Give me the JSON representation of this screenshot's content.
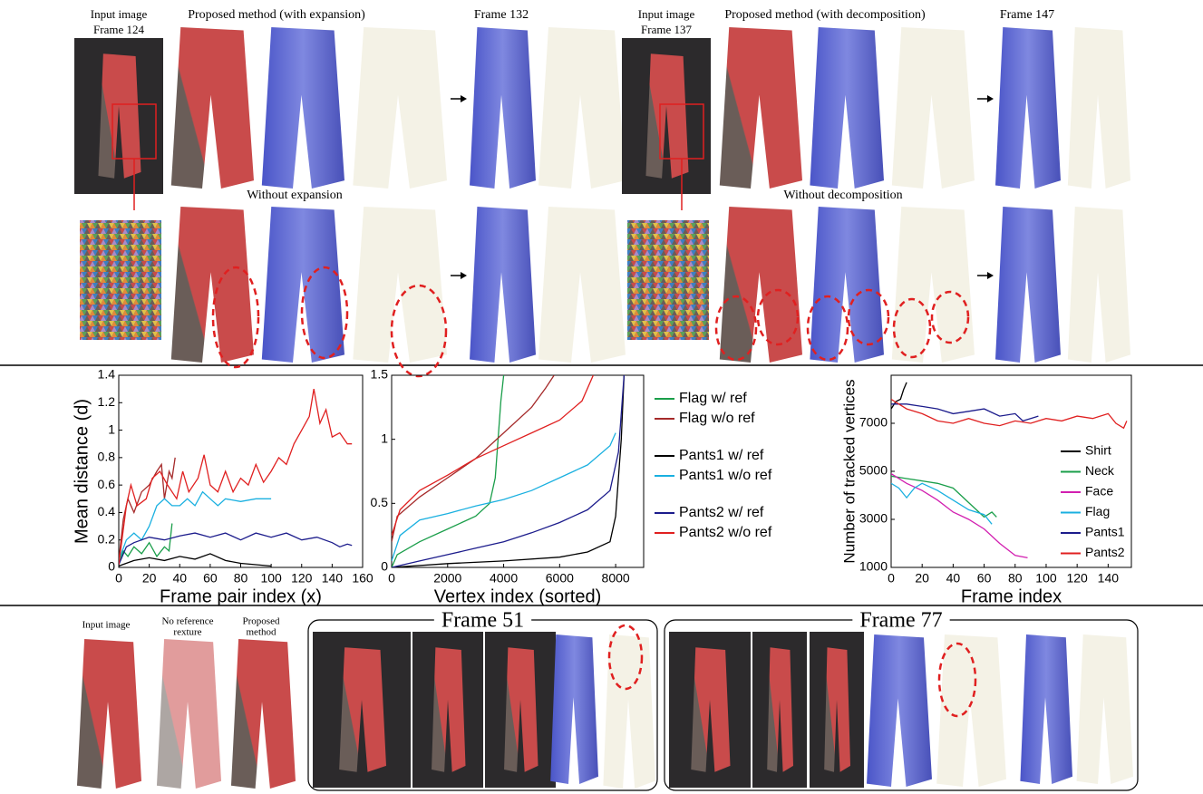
{
  "top_panel": {
    "left": {
      "input_label": [
        "Input image",
        "Frame 124"
      ],
      "method_label": "Proposed method (with expansion)",
      "frame_label": "Frame 132",
      "ablation_label": "Without expansion"
    },
    "right": {
      "input_label": [
        "Input image",
        "Frame 137"
      ],
      "method_label": "Proposed method (with decomposition)",
      "frame_label": "Frame 147",
      "ablation_label": "Without decomposition"
    }
  },
  "chart_data": [
    {
      "type": "line",
      "xlabel": "Frame pair index (x)",
      "ylabel": "Mean distance (d)",
      "xlim": [
        0,
        160
      ],
      "ylim": [
        0,
        1.4
      ],
      "xticks": [
        0,
        20,
        40,
        60,
        80,
        100,
        120,
        140,
        160
      ],
      "yticks": [
        0,
        0.2,
        0.4,
        0.6,
        0.8,
        1,
        1.2,
        1.4
      ],
      "series": [
        {
          "color": "#1a9e4a",
          "x": [
            0,
            3,
            6,
            10,
            15,
            20,
            25,
            30,
            33,
            35
          ],
          "values": [
            0.02,
            0.12,
            0.08,
            0.15,
            0.1,
            0.18,
            0.08,
            0.15,
            0.12,
            0.32
          ]
        },
        {
          "color": "#a52a2a",
          "x": [
            0,
            3,
            6,
            10,
            15,
            20,
            25,
            28,
            30,
            33,
            35,
            37
          ],
          "values": [
            0.05,
            0.35,
            0.5,
            0.4,
            0.55,
            0.6,
            0.7,
            0.75,
            0.5,
            0.7,
            0.65,
            0.8
          ]
        },
        {
          "color": "#000000",
          "x": [
            0,
            10,
            20,
            30,
            40,
            50,
            60,
            70,
            80,
            90,
            100
          ],
          "values": [
            0.01,
            0.05,
            0.07,
            0.05,
            0.08,
            0.06,
            0.1,
            0.05,
            0.03,
            0.02,
            0.01
          ]
        },
        {
          "color": "#1ab0e0",
          "x": [
            0,
            5,
            10,
            15,
            20,
            25,
            30,
            35,
            40,
            45,
            50,
            55,
            60,
            65,
            70,
            80,
            90,
            100
          ],
          "values": [
            0.05,
            0.2,
            0.25,
            0.2,
            0.3,
            0.45,
            0.5,
            0.45,
            0.45,
            0.5,
            0.45,
            0.55,
            0.5,
            0.45,
            0.5,
            0.48,
            0.5,
            0.5
          ]
        },
        {
          "color": "#1c1c8c",
          "x": [
            0,
            5,
            10,
            20,
            30,
            40,
            50,
            60,
            70,
            80,
            90,
            100,
            110,
            120,
            130,
            140,
            145,
            150,
            153
          ],
          "values": [
            0.02,
            0.15,
            0.18,
            0.22,
            0.2,
            0.23,
            0.25,
            0.22,
            0.25,
            0.2,
            0.25,
            0.22,
            0.25,
            0.2,
            0.22,
            0.18,
            0.15,
            0.17,
            0.16
          ]
        },
        {
          "color": "#e02020",
          "x": [
            0,
            5,
            8,
            12,
            18,
            22,
            27,
            32,
            38,
            42,
            46,
            52,
            56,
            60,
            65,
            70,
            75,
            80,
            85,
            90,
            95,
            100,
            105,
            110,
            115,
            120,
            125,
            128,
            132,
            136,
            140,
            145,
            150,
            153
          ],
          "values": [
            0.02,
            0.45,
            0.6,
            0.45,
            0.5,
            0.65,
            0.7,
            0.6,
            0.5,
            0.7,
            0.55,
            0.65,
            0.82,
            0.6,
            0.55,
            0.7,
            0.55,
            0.65,
            0.6,
            0.75,
            0.62,
            0.7,
            0.8,
            0.75,
            0.9,
            1.0,
            1.1,
            1.3,
            1.05,
            1.15,
            0.95,
            0.98,
            0.9,
            0.9
          ]
        }
      ]
    },
    {
      "type": "line",
      "xlabel": "Vertex index (sorted)",
      "xlim": [
        0,
        9000
      ],
      "ylim": [
        0,
        1.5
      ],
      "xticks": [
        0,
        2000,
        4000,
        6000,
        8000
      ],
      "yticks": [
        0,
        0.5,
        1,
        1.5
      ],
      "legend": "outside right",
      "series": [
        {
          "name": "Flag w/ ref",
          "color": "#1a9e4a",
          "x": [
            0,
            200,
            1000,
            2000,
            3000,
            3500,
            3700,
            3800,
            3900,
            4000
          ],
          "values": [
            0,
            0.1,
            0.2,
            0.3,
            0.4,
            0.5,
            0.7,
            1.0,
            1.3,
            1.5
          ]
        },
        {
          "name": "Flag w/o ref",
          "color": "#a52a2a",
          "x": [
            0,
            200,
            1000,
            2000,
            3000,
            4000,
            5000,
            5500,
            5800
          ],
          "values": [
            0.2,
            0.4,
            0.55,
            0.7,
            0.85,
            1.05,
            1.25,
            1.4,
            1.5
          ]
        },
        {
          "name": "Pants1 w/ ref",
          "color": "#000000",
          "x": [
            0,
            2000,
            4000,
            6000,
            7000,
            7800,
            8000,
            8200,
            8300
          ],
          "values": [
            0,
            0.03,
            0.05,
            0.08,
            0.12,
            0.2,
            0.4,
            1.0,
            1.5
          ]
        },
        {
          "name": "Pants1 w/o ref",
          "color": "#1ab0e0",
          "x": [
            0,
            300,
            1000,
            2000,
            3000,
            4000,
            5000,
            6000,
            7000,
            7800,
            8000
          ],
          "values": [
            0.05,
            0.25,
            0.37,
            0.42,
            0.48,
            0.53,
            0.6,
            0.7,
            0.8,
            0.95,
            1.05
          ]
        },
        {
          "name": "Pants2 w/ ref",
          "color": "#1c1c8c",
          "x": [
            0,
            1000,
            2000,
            3000,
            4000,
            5000,
            6000,
            7000,
            7800,
            8100,
            8300
          ],
          "values": [
            0,
            0.05,
            0.1,
            0.15,
            0.2,
            0.27,
            0.35,
            0.45,
            0.6,
            0.9,
            1.5
          ]
        },
        {
          "name": "Pants2 w/o ref",
          "color": "#e02020",
          "x": [
            0,
            300,
            1000,
            2000,
            3000,
            4000,
            5000,
            6000,
            6800,
            7200
          ],
          "values": [
            0.25,
            0.45,
            0.6,
            0.72,
            0.85,
            0.95,
            1.05,
            1.15,
            1.3,
            1.5
          ]
        }
      ]
    },
    {
      "type": "line",
      "xlabel": "Frame index",
      "ylabel": "Number of tracked vertices",
      "xlim": [
        0,
        155
      ],
      "ylim": [
        1000,
        9000
      ],
      "xticks": [
        0,
        20,
        40,
        60,
        80,
        100,
        120,
        140
      ],
      "yticks": [
        1000,
        3000,
        5000,
        7000
      ],
      "legend": "lower right",
      "series": [
        {
          "name": "Shirt",
          "color": "#000000",
          "x": [
            0,
            3,
            6,
            8,
            10
          ],
          "values": [
            7600,
            7900,
            8000,
            8400,
            8700
          ]
        },
        {
          "name": "Neck",
          "color": "#1a9e4a",
          "x": [
            0,
            10,
            20,
            30,
            40,
            50,
            60,
            65,
            68
          ],
          "values": [
            4800,
            4700,
            4600,
            4500,
            4300,
            3700,
            3100,
            3300,
            3100
          ]
        },
        {
          "name": "Face",
          "color": "#d21fb0",
          "x": [
            0,
            10,
            20,
            30,
            40,
            50,
            60,
            70,
            80,
            88
          ],
          "values": [
            4900,
            4500,
            4200,
            3800,
            3300,
            3000,
            2600,
            2000,
            1500,
            1400
          ]
        },
        {
          "name": "Flag",
          "color": "#1ab0e0",
          "x": [
            0,
            5,
            10,
            15,
            20,
            30,
            40,
            50,
            60,
            65
          ],
          "values": [
            4500,
            4300,
            3900,
            4300,
            4500,
            4200,
            3800,
            3400,
            3200,
            2800
          ]
        },
        {
          "name": "Pants1",
          "color": "#1c1c8c",
          "x": [
            0,
            10,
            20,
            30,
            40,
            50,
            60,
            70,
            80,
            85,
            90,
            95
          ],
          "values": [
            7800,
            7800,
            7700,
            7600,
            7400,
            7500,
            7600,
            7300,
            7400,
            7100,
            7200,
            7300
          ]
        },
        {
          "name": "Pants2",
          "color": "#e02020",
          "x": [
            0,
            10,
            20,
            30,
            40,
            50,
            60,
            70,
            80,
            90,
            100,
            110,
            120,
            130,
            140,
            145,
            150,
            152
          ],
          "values": [
            8000,
            7600,
            7400,
            7100,
            7000,
            7200,
            7000,
            6900,
            7100,
            7000,
            7200,
            7100,
            7300,
            7200,
            7400,
            7000,
            6800,
            7100
          ]
        }
      ]
    }
  ],
  "bottom_panel": {
    "input_label": "Input image",
    "no_reference_label": [
      "No reference",
      "rexture"
    ],
    "proposed_label": [
      "Proposed",
      "method"
    ],
    "frame_labels": [
      "Frame 51",
      "Frame 77"
    ]
  }
}
